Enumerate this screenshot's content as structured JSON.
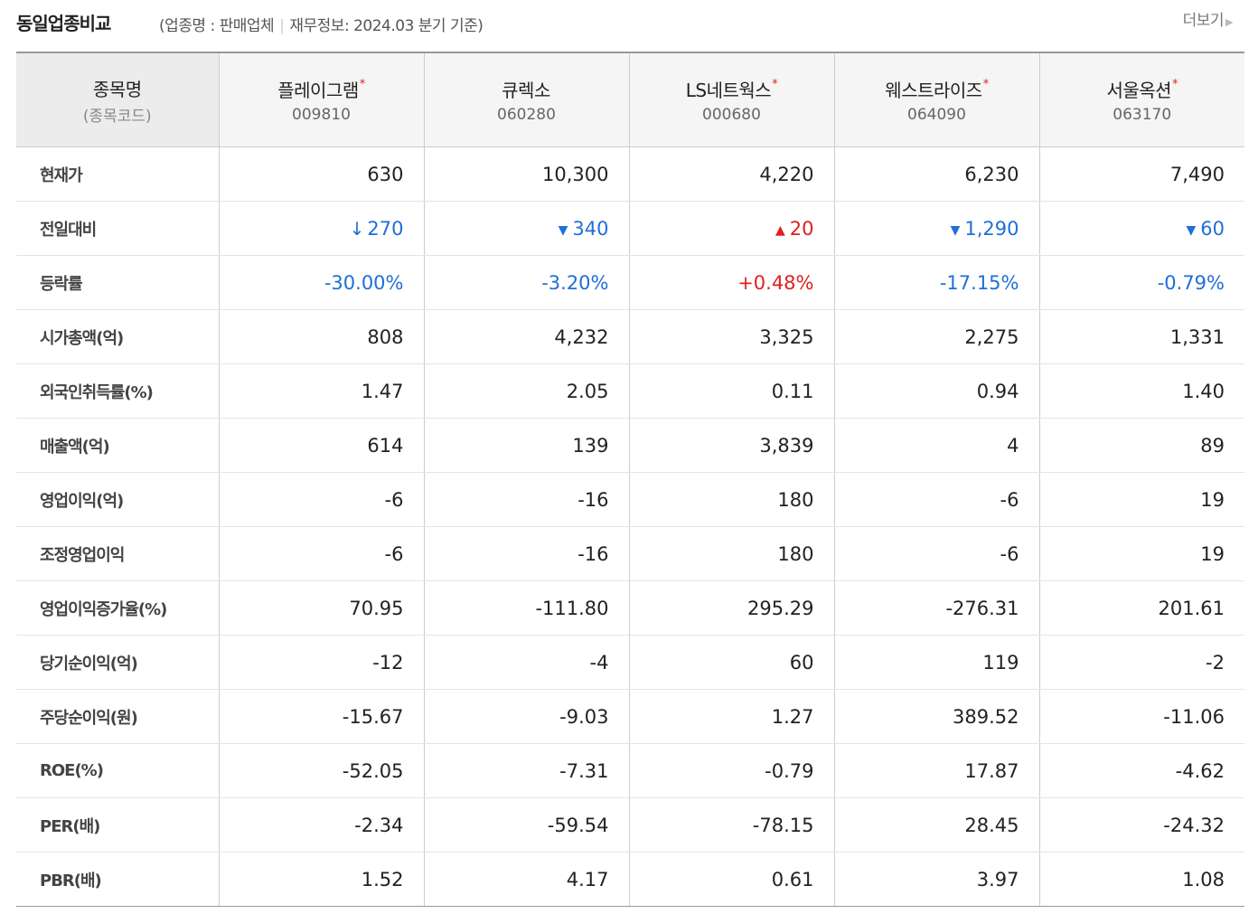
{
  "header": {
    "title": "동일업종비교",
    "subtitle_open": "(업종명 : 판매업체",
    "subtitle_rest": "재무정보: 2024.03 분기 기준)",
    "more_label": "더보기"
  },
  "table": {
    "col_label_main": "종목명",
    "col_label_sub": "(종목코드)",
    "companies": [
      {
        "name": "플레이그램",
        "code": "009810",
        "star": "*"
      },
      {
        "name": "큐렉소",
        "code": "060280",
        "star": ""
      },
      {
        "name": "LS네트웍스",
        "code": "000680",
        "star": "*"
      },
      {
        "name": "웨스트라이즈",
        "code": "064090",
        "star": "*"
      },
      {
        "name": "서울옥션",
        "code": "063170",
        "star": "*"
      }
    ],
    "rows": [
      {
        "label": "현재가",
        "values": [
          "630",
          "10,300",
          "4,220",
          "6,230",
          "7,490"
        ]
      },
      {
        "label": "전일대비",
        "values": [
          "270",
          "340",
          "20",
          "1,290",
          "60"
        ]
      },
      {
        "label": "등락률",
        "values": [
          "-30.00%",
          "-3.20%",
          "+0.48%",
          "-17.15%",
          "-0.79%"
        ]
      },
      {
        "label": "시가총액(억)",
        "values": [
          "808",
          "4,232",
          "3,325",
          "2,275",
          "1,331"
        ]
      },
      {
        "label": "외국인취득률(%)",
        "values": [
          "1.47",
          "2.05",
          "0.11",
          "0.94",
          "1.40"
        ]
      },
      {
        "label": "매출액(억)",
        "values": [
          "614",
          "139",
          "3,839",
          "4",
          "89"
        ]
      },
      {
        "label": "영업이익(억)",
        "values": [
          "-6",
          "-16",
          "180",
          "-6",
          "19"
        ]
      },
      {
        "label": "조정영업이익",
        "values": [
          "-6",
          "-16",
          "180",
          "-6",
          "19"
        ]
      },
      {
        "label": "영업이익증가율(%)",
        "values": [
          "70.95",
          "-111.80",
          "295.29",
          "-276.31",
          "201.61"
        ]
      },
      {
        "label": "당기순이익(억)",
        "values": [
          "-12",
          "-4",
          "60",
          "119",
          "-2"
        ]
      },
      {
        "label": "주당순이익(원)",
        "values": [
          "-15.67",
          "-9.03",
          "1.27",
          "389.52",
          "-11.06"
        ]
      },
      {
        "label": "ROE(%)",
        "values": [
          "-52.05",
          "-7.31",
          "-0.79",
          "17.87",
          "-4.62"
        ]
      },
      {
        "label": "PER(배)",
        "values": [
          "-2.34",
          "-59.54",
          "-78.15",
          "28.45",
          "-24.32"
        ]
      },
      {
        "label": "PBR(배)",
        "values": [
          "1.52",
          "4.17",
          "0.61",
          "3.97",
          "1.08"
        ]
      }
    ],
    "change_direction": [
      "lower-limit",
      "down",
      "up",
      "down",
      "down"
    ]
  },
  "colors": {
    "up": "#e02020",
    "down": "#1e6fd9"
  }
}
